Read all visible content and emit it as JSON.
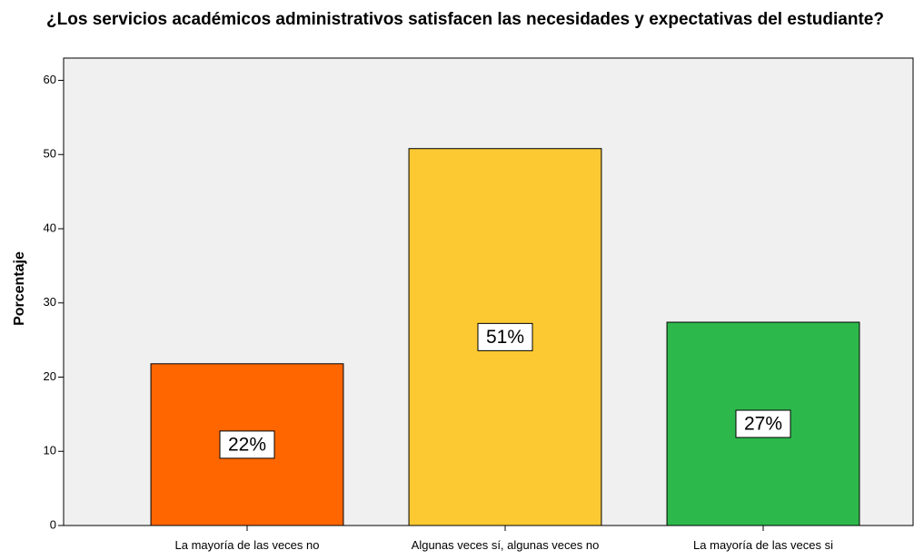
{
  "chart_data": {
    "type": "bar",
    "title": "¿Los servicios académicos administrativos satisfacen las necesidades y expectativas del estudiante?",
    "ylabel": "Porcentaje",
    "categories": [
      "La mayoría de las veces no",
      "Algunas veces sí, algunas veces no",
      "La mayoría de las veces si"
    ],
    "values": [
      21.8,
      50.8,
      27.4
    ],
    "value_labels": [
      "22%",
      "51%",
      "27%"
    ],
    "colors": [
      "#ff6600",
      "#fdc933",
      "#2db84c"
    ],
    "ylim": [
      0,
      63
    ],
    "yticks": [
      0,
      10,
      20,
      30,
      40,
      50,
      60
    ]
  }
}
